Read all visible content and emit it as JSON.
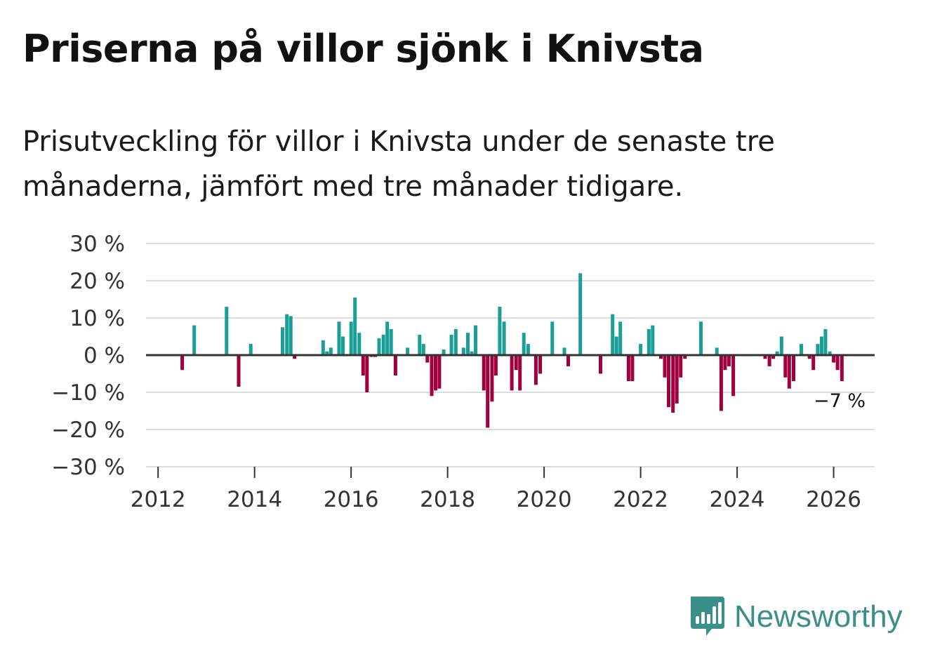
{
  "title": "Priserna på villor sjönk i Knivsta",
  "subtitle": "Prisutveckling för villor i Knivsta under de senaste tre månaderna, jämfört med tre månader tidigare.",
  "brand": {
    "name": "Newsworthy",
    "color": "#3a8f88",
    "icon": "bar-chart-icon"
  },
  "chart_data": {
    "type": "bar",
    "title": "Priserna på villor sjönk i Knivsta",
    "xlabel": "",
    "ylabel": "",
    "ylim": [
      -30,
      30
    ],
    "yticks": [
      30,
      20,
      10,
      0,
      -10,
      -20,
      -30
    ],
    "ytick_labels": [
      "30 %",
      "20 %",
      "10 %",
      "0 %",
      "−10 %",
      "−20 %",
      "−30 %"
    ],
    "xlim": [
      2011.75,
      2026.85
    ],
    "xticks": [
      2012,
      2014,
      2016,
      2018,
      2020,
      2022,
      2024,
      2026
    ],
    "xtick_labels": [
      "2012",
      "2014",
      "2016",
      "2018",
      "2020",
      "2022",
      "2024",
      "2026"
    ],
    "positive_color": "#1a9e96",
    "negative_color": "#a0003e",
    "last_value_label": "−7 %",
    "x": [
      2012.5,
      2012.75,
      2013.42,
      2013.67,
      2013.92,
      2014.58,
      2014.67,
      2014.75,
      2014.83,
      2015.42,
      2015.5,
      2015.58,
      2015.75,
      2015.83,
      2016.0,
      2016.08,
      2016.17,
      2016.25,
      2016.33,
      2016.42,
      2016.5,
      2016.58,
      2016.67,
      2016.75,
      2016.83,
      2016.92,
      2017.17,
      2017.42,
      2017.5,
      2017.58,
      2017.67,
      2017.75,
      2017.83,
      2017.92,
      2018.08,
      2018.17,
      2018.33,
      2018.42,
      2018.5,
      2018.58,
      2018.75,
      2018.83,
      2018.92,
      2019.0,
      2019.08,
      2019.17,
      2019.33,
      2019.42,
      2019.5,
      2019.58,
      2019.67,
      2019.83,
      2019.92,
      2020.17,
      2020.42,
      2020.5,
      2020.75,
      2021.17,
      2021.42,
      2021.5,
      2021.58,
      2021.75,
      2021.83,
      2022.0,
      2022.17,
      2022.25,
      2022.42,
      2022.5,
      2022.58,
      2022.67,
      2022.75,
      2022.83,
      2022.92,
      2023.25,
      2023.58,
      2023.67,
      2023.75,
      2023.83,
      2023.92,
      2024.58,
      2024.67,
      2024.75,
      2024.83,
      2024.92,
      2025.0,
      2025.08,
      2025.17,
      2025.33,
      2025.5,
      2025.58,
      2025.67,
      2025.75,
      2025.83,
      2025.92,
      2026.0,
      2026.08,
      2026.17
    ],
    "values": [
      -4,
      8,
      13,
      -8.5,
      3,
      7.5,
      11,
      10.5,
      -1,
      4,
      1,
      2,
      9,
      5,
      9,
      15.5,
      6,
      -5.5,
      -10,
      -0.5,
      -0.5,
      4.5,
      5.5,
      9,
      7,
      -5.5,
      2,
      5.5,
      3,
      -2,
      -11,
      -9.5,
      -9,
      1.5,
      5.5,
      7,
      2,
      6,
      1,
      8,
      -9.5,
      -19.5,
      -12.5,
      -5.5,
      13,
      9,
      -9.5,
      -4,
      -9.5,
      6,
      3,
      -8,
      -5,
      9,
      2,
      -3,
      22,
      -5,
      11,
      5,
      9,
      -7,
      -7,
      3,
      7,
      8,
      -1,
      -6,
      -14,
      -15.5,
      -13,
      -6,
      -1,
      9,
      2,
      -15,
      -4,
      -3,
      -11,
      -1,
      -3,
      -1,
      1,
      5,
      -6,
      -9,
      -7,
      3,
      -1,
      -4,
      3,
      5,
      7,
      1,
      -2,
      -4,
      -7
    ]
  }
}
